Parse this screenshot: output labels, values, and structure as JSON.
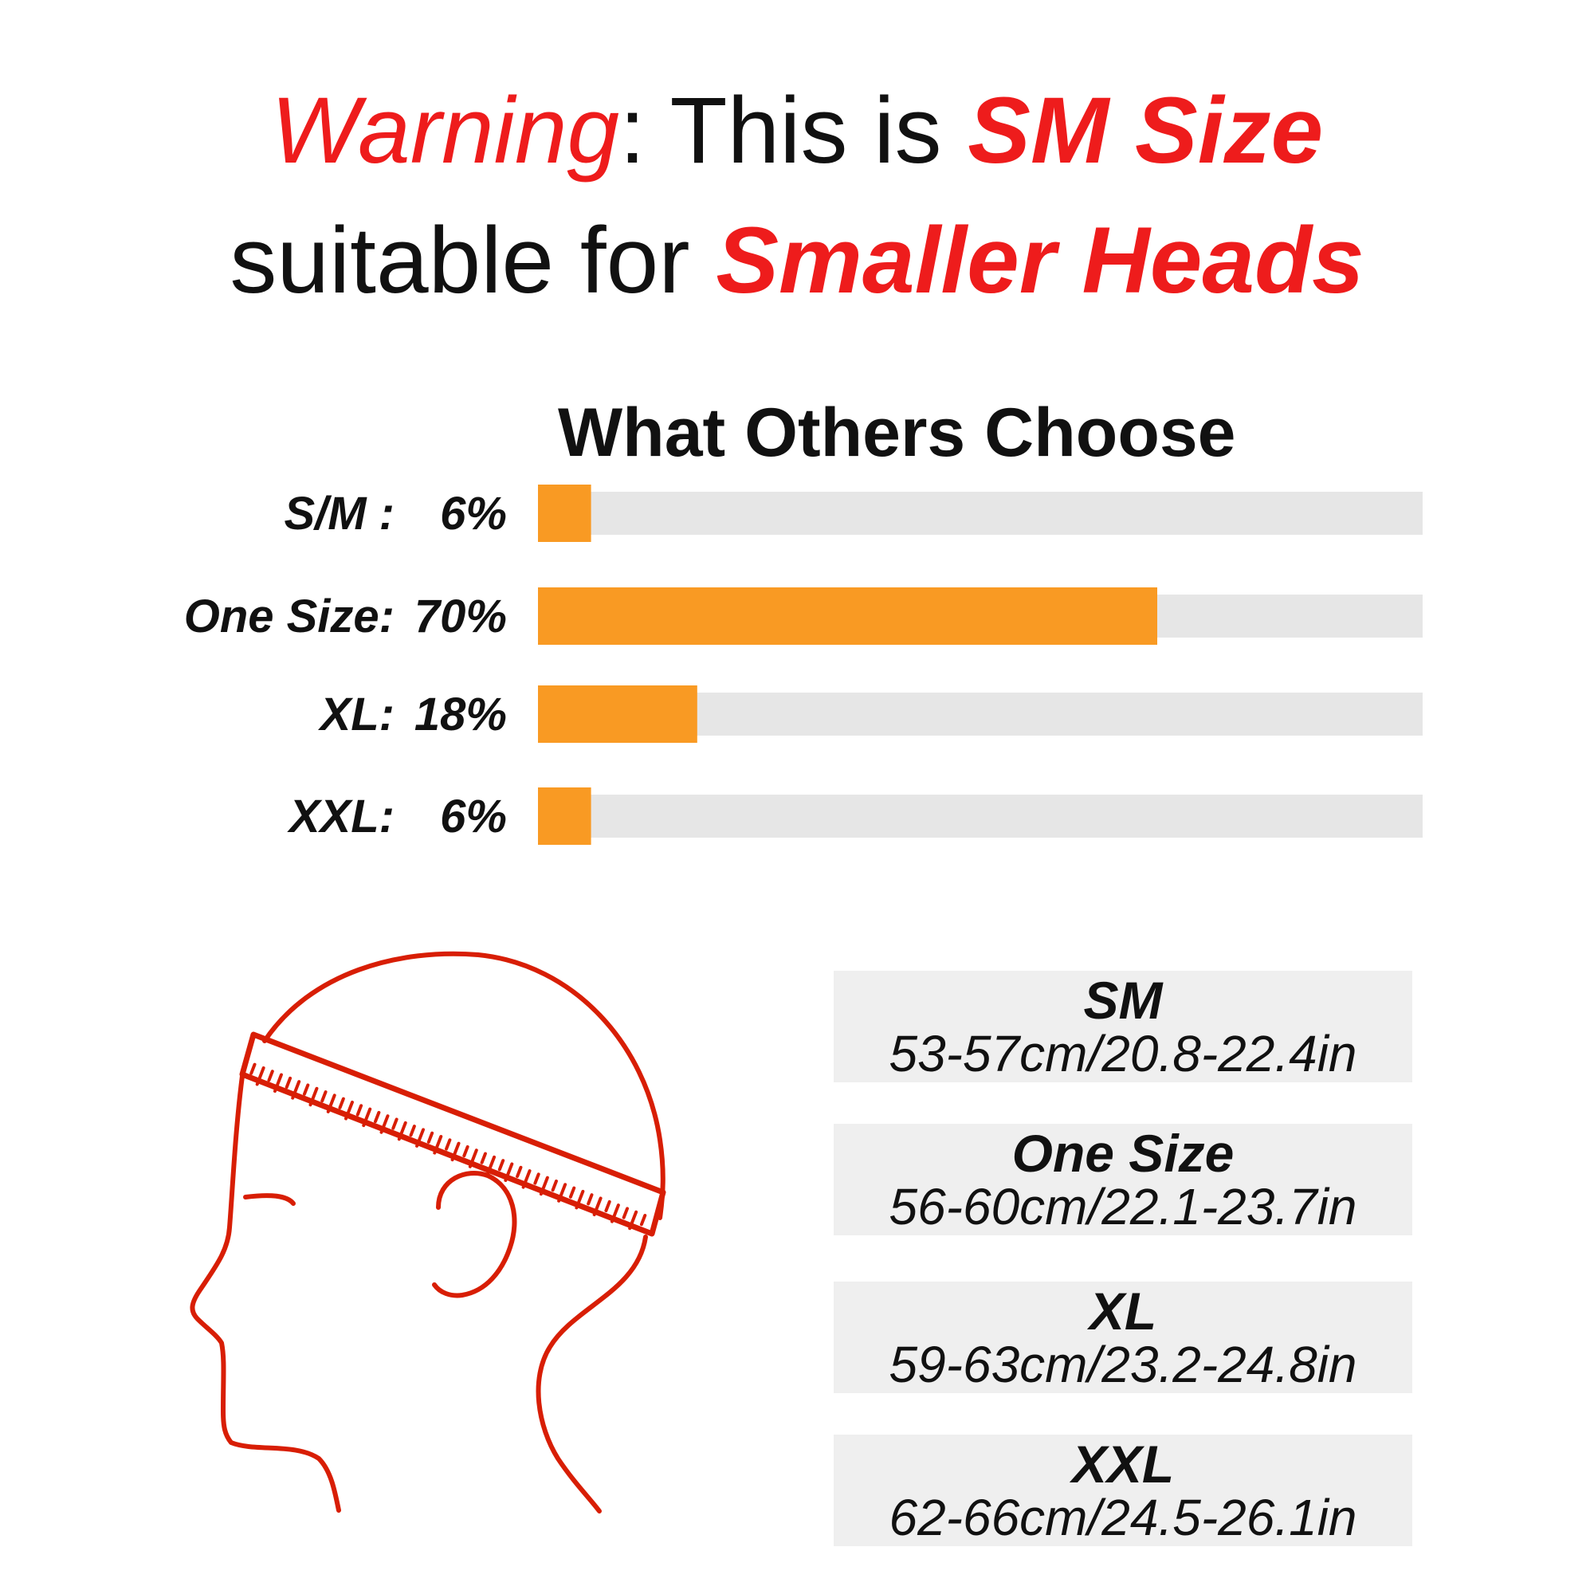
{
  "headline": {
    "line1": {
      "warning": "Warning",
      "colon": ":",
      "this_is": " This is ",
      "size": "SM Size"
    },
    "line2": {
      "suitable_for": "suitable for ",
      "smaller_heads": "Smaller Heads"
    }
  },
  "colors": {
    "accent_red": "#ee1c1c",
    "bar_fill": "#f99a23",
    "bar_track": "#e6e6e6",
    "size_box": "#efefef",
    "head_line": "#d81e05"
  },
  "chart_data": {
    "type": "bar",
    "orientation": "horizontal",
    "title": "What Others Choose",
    "categories": [
      "S/M :",
      "One Size:",
      "XL:",
      "XXL:"
    ],
    "values": [
      6,
      70,
      18,
      6
    ],
    "value_labels": [
      "6%",
      "70%",
      "18%",
      "6%"
    ],
    "xlim": [
      0,
      100
    ],
    "unit": "%",
    "grid": false
  },
  "size_table": [
    {
      "name": "SM",
      "range": "53-57cm/20.8-22.4in"
    },
    {
      "name": "One Size",
      "range": "56-60cm/22.1-23.7in"
    },
    {
      "name": "XL",
      "range": "59-63cm/23.2-24.8in"
    },
    {
      "name": "XXL",
      "range": "62-66cm/24.5-26.1in"
    }
  ],
  "illustration": {
    "icon": "head-measuring-tape-icon"
  }
}
